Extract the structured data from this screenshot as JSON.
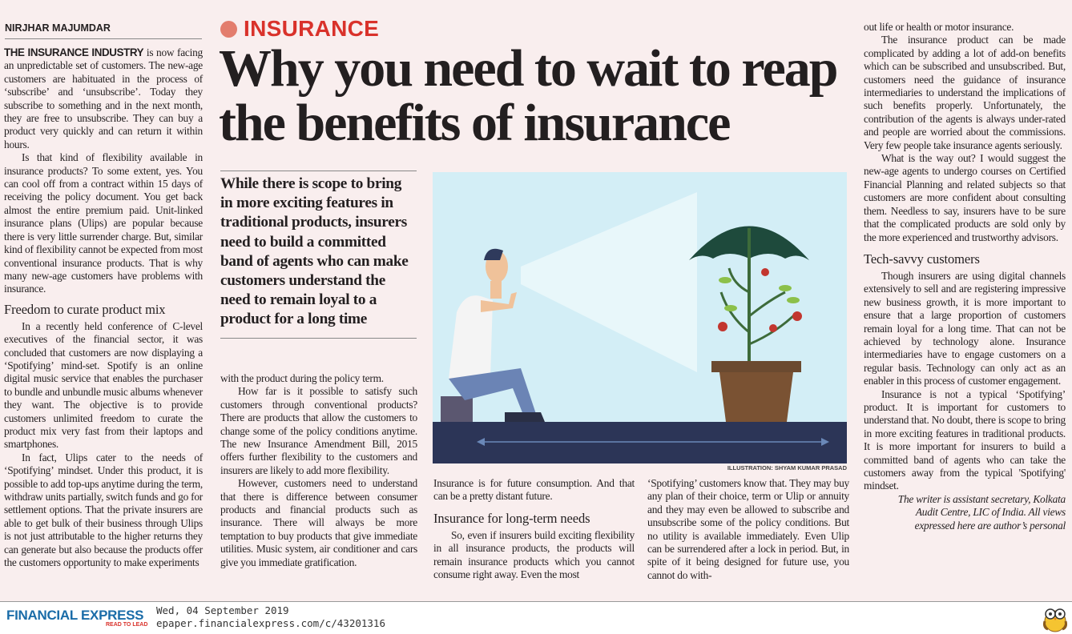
{
  "byline": "NIRJHAR MAJUMDAR",
  "kicker": "INSURANCE",
  "headline": "Why you need to wait to reap the benefits of insurance",
  "pull_quote": "While there is scope to bring in more exciting features in traditional products, insurers need to build a committed band of agents who can make customers understand the need to remain loyal to a product for a long time",
  "illustration_credit": "ILLUSTRATION: SHYAM KUMAR PRASAD",
  "colors": {
    "kicker": "#d9322b",
    "brand": "#1a6ca8",
    "background": "#f9eeee",
    "illustration_sky": "#d3eef6",
    "illustration_floor": "#2c3557"
  },
  "col1": {
    "lead": "THE INSURANCE INDUSTRY",
    "p1": " is now facing an unpredictable set of customers. The new-age customers are habituated in the process of ‘subscribe’ and ‘unsubscribe’. Today they subscribe to something and in the next month, they are free to unsubscribe. They can buy a product very quickly and can return it within hours.",
    "p2": "Is that kind of flexibility available in insurance products? To some extent, yes. You can cool off from a contract within 15 days of receiving the policy document. You get back almost the entire premium paid. Unit-linked insurance plans (Ulips) are popular because there is very little surrender charge. But, similar kind of flexibility cannot be expected from most conventional insurance products. That is why many new-age customers have problems with insurance.",
    "h1": "Freedom to curate product mix",
    "p3": "In a recently held conference of C-level executives of the financial sector, it was concluded that customers are now displaying a ‘Spotifying’ mind-set. Spotify is an online digital music service that enables the purchaser to bundle and unbundle music albums whenever they want. The objective is to provide customers unlimited freedom to curate the product mix very fast from their laptops and smartphones.",
    "p4": "In fact, Ulips cater to the needs of ‘Spotifying’ mindset. Under this product, it is possible to add top-ups anytime during the term, withdraw units partially, switch funds and go for settlement options. That the private insurers are able to get bulk of their business through Ulips is not just attributable to the higher returns they can generate but also because the products offer the customers opportunity to make experiments"
  },
  "col2": {
    "p1": "with the product during the policy term.",
    "p2": "How far is it possible to satisfy such customers through conventional products? There are products that allow the customers to change some of the policy conditions anytime. The new Insurance Amendment Bill, 2015 offers further flexibility to the customers and insurers are likely to add more flexibility.",
    "p3": "However, customers need to understand that there is difference between consumer products and financial products such as insurance. There will always be more temptation to buy products that give immediate utilities. Music system, air conditioner and cars give you immediate gratification."
  },
  "col3": {
    "p1": "Insurance is for future consumption. And that can be a pretty distant future.",
    "h1": "Insurance for long-term needs",
    "p2": "So, even if insurers build exciting flexibility in all insurance products, the products will remain insurance products which you cannot consume right away. Even the most"
  },
  "col4": {
    "p1": "‘Spotifying’ customers know that. They may buy any plan of their choice, term or Ulip or annuity and they may even be allowed to subscribe and unsubscribe some of the policy conditions. But no utility is available immediately. Even Ulip can be surrendered after a lock in period. But, in spite of it being designed for future use, you cannot do with-"
  },
  "col5": {
    "p1": "out life or health or motor insurance.",
    "p2": "The insurance product can be made complicated by adding a lot of add-on benefits which can be subscribed and unsubscribed. But, customers need the guidance of insurance intermediaries to understand the implications of such benefits properly. Unfortunately, the contribution of the agents is always under-rated and people are worried about the commissions. Very few people take insurance agents seriously.",
    "p3": "What is the way out? I would suggest the new-age agents to undergo courses on Certified Financial Planning and related subjects so that customers are more confident about consulting them. Needless to say, insurers have to be sure that the complicated products are sold only by the more experienced and trustworthy advisors.",
    "h1": "Tech-savvy customers",
    "p4": "Though insurers are using digital channels extensively to sell and are registering impressive new business growth, it is more important to ensure that a large proportion of customers remain loyal for a long time. That can not be achieved by technology alone. Insurance intermediaries have to engage customers on a regular basis. Technology can only act as an enabler in this process of customer engagement.",
    "p5": "Insurance is not a typical ‘Spotifying’ product. It is important for customers to understand that. No doubt, there is scope to bring in more exciting features in traditional products. It is more important for insurers to build a committed band of agents who can take the customers away from the typical 'Spotifying' mindset.",
    "bio": "The writer is assistant secretary, Kolkata Audit Centre, LIC of India. All views expressed here are author’s personal"
  },
  "footer": {
    "logo": "FINANCIAL EXPRESS",
    "tagline": "READ TO LEAD",
    "date": "Wed, 04 September 2019",
    "url": "epaper.financialexpress.com/c/43201316",
    "mascot_icon": "owl-icon"
  }
}
